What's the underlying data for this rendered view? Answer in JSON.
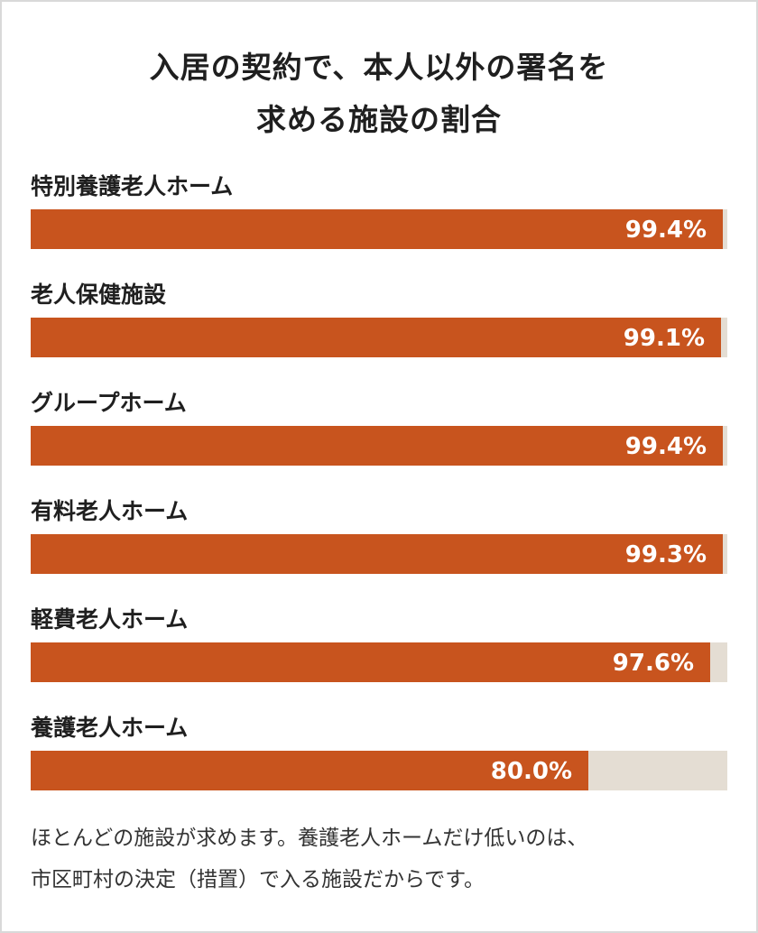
{
  "chart_data": {
    "type": "bar",
    "orientation": "horizontal",
    "title": [
      "入居の契約で、本人以外の署名を",
      "求める施設の割合"
    ],
    "categories": [
      "特別養護老人ホーム",
      "老人保健施設",
      "グループホーム",
      "有料老人ホーム",
      "軽費老人ホーム",
      "養護老人ホーム"
    ],
    "values": [
      99.4,
      99.1,
      99.4,
      99.3,
      97.6,
      80.0
    ],
    "value_labels": [
      "99.4%",
      "99.1%",
      "99.4%",
      "99.3%",
      "97.6%",
      "80.0%"
    ],
    "xlim": [
      0,
      100
    ],
    "grid": false,
    "legend": "none"
  },
  "colors": {
    "bar": "#c8541e",
    "track": "#e4ddd3",
    "value_text": "#ffffff"
  },
  "footnote": [
    "ほとんどの施設が求めます。養護老人ホームだけ低いのは、",
    "市区町村の決定（措置）で入る施設だからです。"
  ]
}
